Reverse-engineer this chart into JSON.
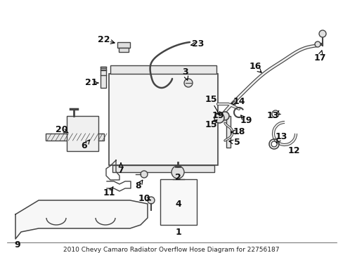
{
  "title": "2010 Chevy Camaro Radiator Overflow Hose Diagram for 22756187",
  "bg_color": "#ffffff",
  "fig_width": 4.89,
  "fig_height": 3.6,
  "dpi": 100
}
